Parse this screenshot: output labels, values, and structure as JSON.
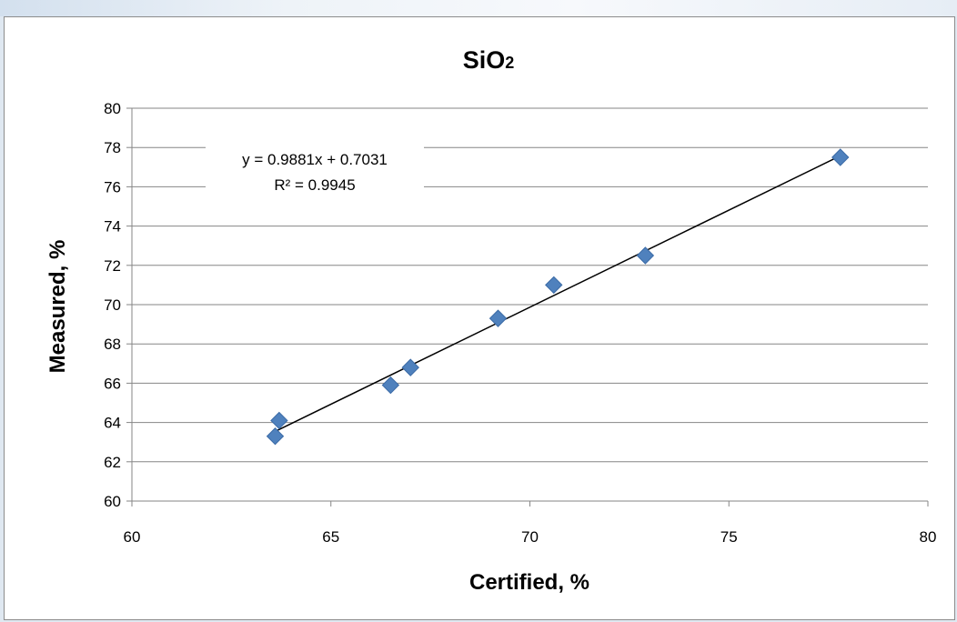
{
  "chart_data": {
    "type": "scatter",
    "title": "SiO",
    "title_subscript": "2",
    "xlabel": "Certified, %",
    "ylabel": "Measured, %",
    "xlim": [
      60,
      80
    ],
    "ylim": [
      60,
      80
    ],
    "x_ticks": [
      "60",
      "65",
      "70",
      "75",
      "80"
    ],
    "y_ticks": [
      "60",
      "62",
      "64",
      "66",
      "68",
      "70",
      "72",
      "74",
      "76",
      "78",
      "80"
    ],
    "grid": "horizontal",
    "legend": "none",
    "series": [
      {
        "marker": "diamond",
        "color": "#4f81bd",
        "points": [
          {
            "x": 63.6,
            "y": 63.3
          },
          {
            "x": 63.7,
            "y": 64.1
          },
          {
            "x": 66.5,
            "y": 65.9
          },
          {
            "x": 67.0,
            "y": 66.8
          },
          {
            "x": 69.2,
            "y": 69.3
          },
          {
            "x": 70.6,
            "y": 71.0
          },
          {
            "x": 72.9,
            "y": 72.5
          },
          {
            "x": 77.8,
            "y": 77.5
          }
        ]
      }
    ],
    "trendline": {
      "type": "linear",
      "slope": 0.9881,
      "intercept": 0.7031,
      "x_range": [
        63.6,
        77.8
      ],
      "equation_text": "y = 0.9881x + 0.7031",
      "r2_text": "R² = 0.9945"
    }
  }
}
